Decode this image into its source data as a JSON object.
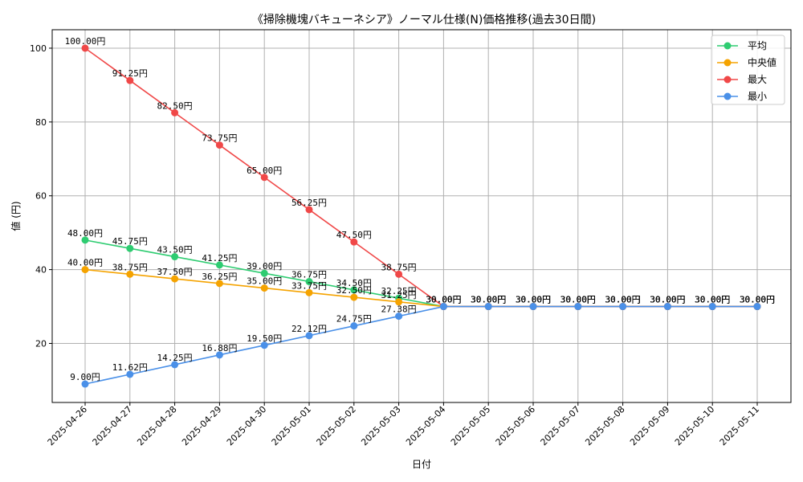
{
  "chart_data": {
    "type": "line",
    "title": "《掃除機塊バキューネシア》ノーマル仕様(N)価格推移(過去30日間)",
    "xlabel": "日付",
    "ylabel": "値 (円)",
    "ylim": [
      4,
      105
    ],
    "yticks": [
      20,
      40,
      60,
      80,
      100
    ],
    "grid": true,
    "legend_position": "top-right",
    "value_suffix": "円",
    "categories": [
      "2025-04-26",
      "2025-04-27",
      "2025-04-28",
      "2025-04-29",
      "2025-04-30",
      "2025-05-01",
      "2025-05-02",
      "2025-05-03",
      "2025-05-04",
      "2025-05-05",
      "2025-05-06",
      "2025-05-07",
      "2025-05-08",
      "2025-05-09",
      "2025-05-10",
      "2025-05-11"
    ],
    "series": [
      {
        "name": "平均",
        "color": "#2ecc71",
        "values": [
          48.0,
          45.75,
          43.5,
          41.25,
          39.0,
          36.75,
          34.5,
          32.25,
          30.0,
          30.0,
          30.0,
          30.0,
          30.0,
          30.0,
          30.0,
          30.0
        ]
      },
      {
        "name": "中央値",
        "color": "#f5a300",
        "values": [
          40.0,
          38.75,
          37.5,
          36.25,
          35.0,
          33.75,
          32.5,
          31.25,
          30.0,
          30.0,
          30.0,
          30.0,
          30.0,
          30.0,
          30.0,
          30.0
        ]
      },
      {
        "name": "最大",
        "color": "#f04848",
        "values": [
          100.0,
          91.25,
          82.5,
          73.75,
          65.0,
          56.25,
          47.5,
          38.75,
          30.0,
          30.0,
          30.0,
          30.0,
          30.0,
          30.0,
          30.0,
          30.0
        ]
      },
      {
        "name": "最小",
        "color": "#4a90e8",
        "values": [
          9.0,
          11.62,
          14.25,
          16.88,
          19.5,
          22.12,
          24.75,
          27.38,
          30.0,
          30.0,
          30.0,
          30.0,
          30.0,
          30.0,
          30.0,
          30.0
        ]
      }
    ]
  }
}
